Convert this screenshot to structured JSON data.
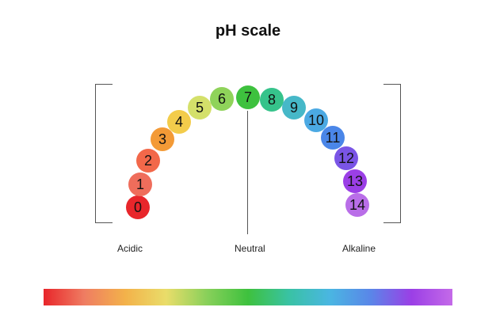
{
  "title": "pH scale",
  "labels": {
    "acidic": "Acidic",
    "neutral": "Neutral",
    "alkaline": "Alkaline"
  },
  "scale": [
    {
      "value": "0",
      "color": "#e8262b"
    },
    {
      "value": "1",
      "color": "#ef6d5b"
    },
    {
      "value": "2",
      "color": "#f2684a"
    },
    {
      "value": "3",
      "color": "#f39a36"
    },
    {
      "value": "4",
      "color": "#f3cc4b"
    },
    {
      "value": "5",
      "color": "#d4e06a"
    },
    {
      "value": "6",
      "color": "#8fd35a"
    },
    {
      "value": "7",
      "color": "#3ec13e"
    },
    {
      "value": "8",
      "color": "#36c38b"
    },
    {
      "value": "9",
      "color": "#46b8c8"
    },
    {
      "value": "10",
      "color": "#4ba9e3"
    },
    {
      "value": "11",
      "color": "#4a86e8"
    },
    {
      "value": "12",
      "color": "#7a55e6"
    },
    {
      "value": "13",
      "color": "#9b3fe6"
    },
    {
      "value": "14",
      "color": "#b96ee8"
    }
  ],
  "gradient_colors": [
    "#e8262b",
    "#ef7d62",
    "#f3b24a",
    "#e9dd6a",
    "#88d05a",
    "#3ec13e",
    "#39c2a4",
    "#4ab6e2",
    "#5a86e8",
    "#9b3fe6",
    "#c46ae8"
  ]
}
